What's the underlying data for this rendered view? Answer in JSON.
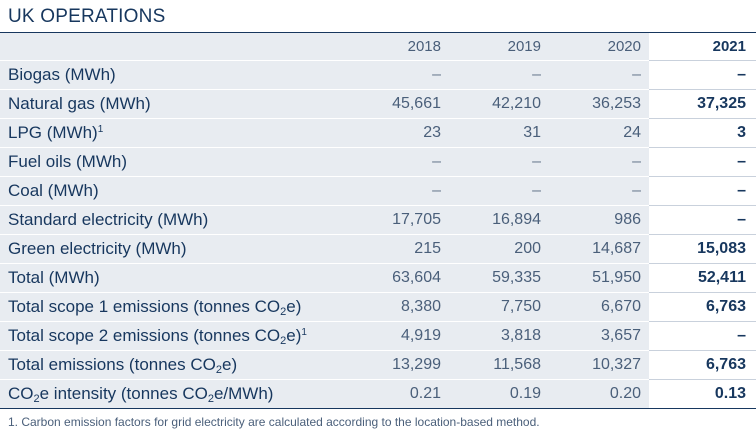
{
  "title": "UK OPERATIONS",
  "years": [
    "2018",
    "2019",
    "2020",
    "2021"
  ],
  "rows": [
    {
      "label": "Biogas (MWh)",
      "values": [
        "–",
        "–",
        "–",
        "–"
      ]
    },
    {
      "label": "Natural gas (MWh)",
      "values": [
        "45,661",
        "42,210",
        "36,253",
        "37,325"
      ]
    },
    {
      "label": "LPG (MWh)",
      "sup": "1",
      "values": [
        "23",
        "31",
        "24",
        "3"
      ]
    },
    {
      "label": "Fuel oils (MWh)",
      "values": [
        "–",
        "–",
        "–",
        "–"
      ]
    },
    {
      "label": "Coal (MWh)",
      "values": [
        "–",
        "–",
        "–",
        "–"
      ]
    },
    {
      "label": "Standard electricity (MWh)",
      "values": [
        "17,705",
        "16,894",
        "986",
        "–"
      ]
    },
    {
      "label": "Green electricity (MWh)",
      "values": [
        "215",
        "200",
        "14,687",
        "15,083"
      ]
    },
    {
      "label": "Total (MWh)",
      "values": [
        "63,604",
        "59,335",
        "51,950",
        "52,411"
      ]
    },
    {
      "label_pre": "Total scope 1 emissions (tonnes CO",
      "label_sub": "2",
      "label_post": "e)",
      "values": [
        "8,380",
        "7,750",
        "6,670",
        "6,763"
      ]
    },
    {
      "label_pre": "Total scope 2 emissions (tonnes CO",
      "label_sub": "2",
      "label_post": "e)",
      "sup": "1",
      "values": [
        "4,919",
        "3,818",
        "3,657",
        "–"
      ]
    },
    {
      "label_pre": "Total emissions (tonnes CO",
      "label_sub": "2",
      "label_post": "e)",
      "values": [
        "13,299",
        "11,568",
        "10,327",
        "6,763"
      ]
    },
    {
      "label_a": "CO",
      "label_sub": "2",
      "label_b": "e intensity (tonnes CO",
      "label_sub2": "2",
      "label_c": "e/MWh)",
      "values": [
        "0.21",
        "0.19",
        "0.20",
        "0.13"
      ]
    }
  ],
  "footnote": "1.  Carbon emission factors for grid electricity are calculated according to the location-based method."
}
